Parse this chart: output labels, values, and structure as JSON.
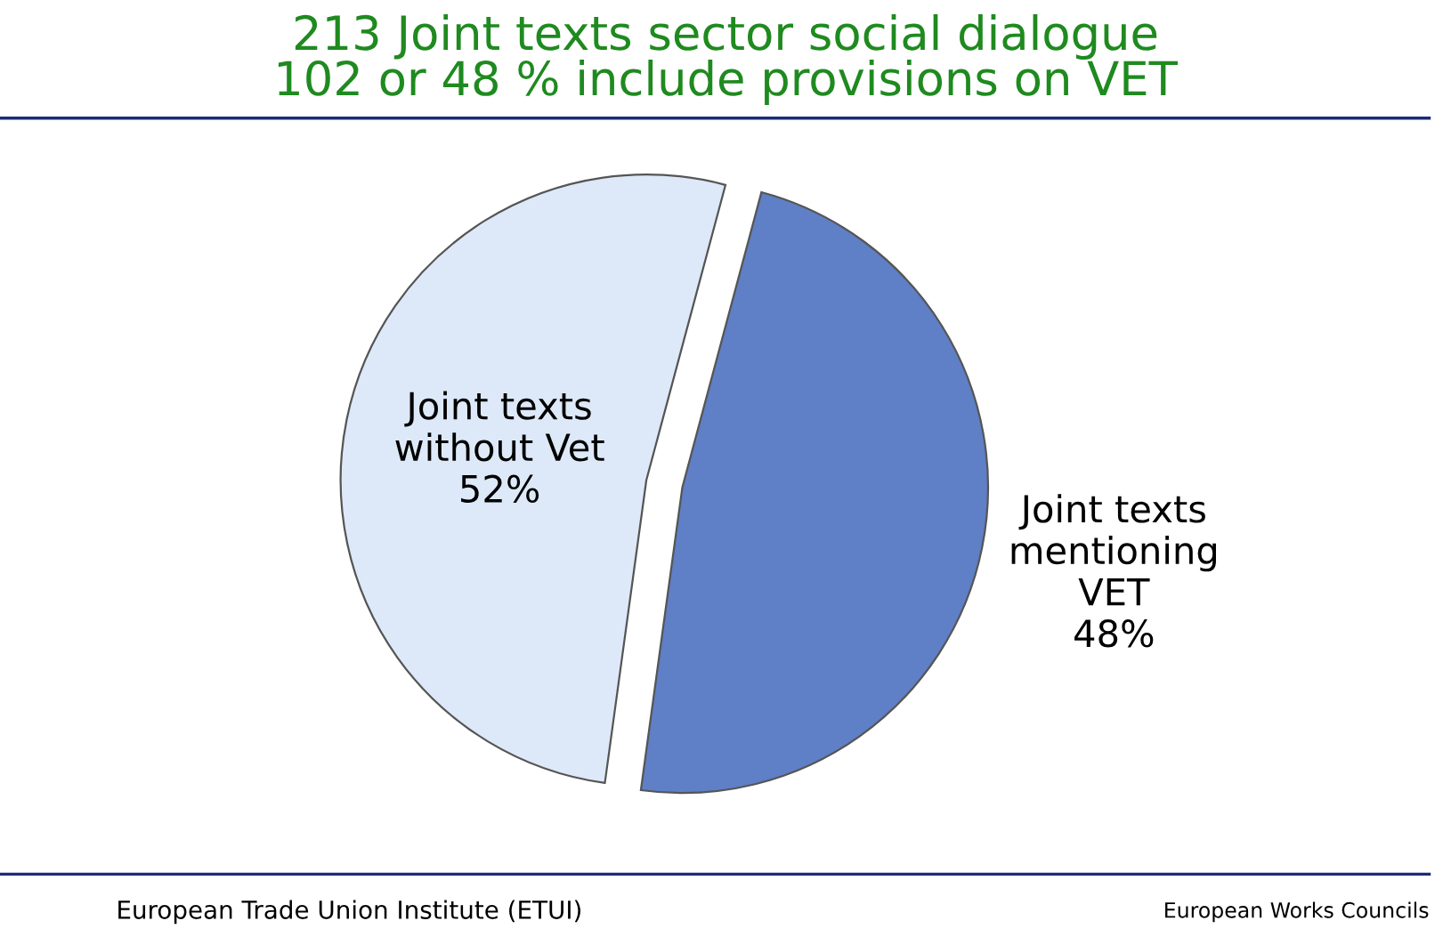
{
  "chart_data": {
    "type": "pie",
    "title": "213 Joint texts sector social dialogue\n102 or 48 % include provisions on VET",
    "categories": [
      "Joint texts\nwithout Vet",
      "Joint texts\nmentioning\nVET"
    ],
    "values": [
      52,
      48
    ],
    "value_labels": [
      "52%",
      "48%"
    ],
    "colors": [
      "#dde9f8",
      "#5f7fc6"
    ],
    "annotations": [
      "European Trade Union Institute (ETUI)",
      "European Works Councils"
    ]
  }
}
